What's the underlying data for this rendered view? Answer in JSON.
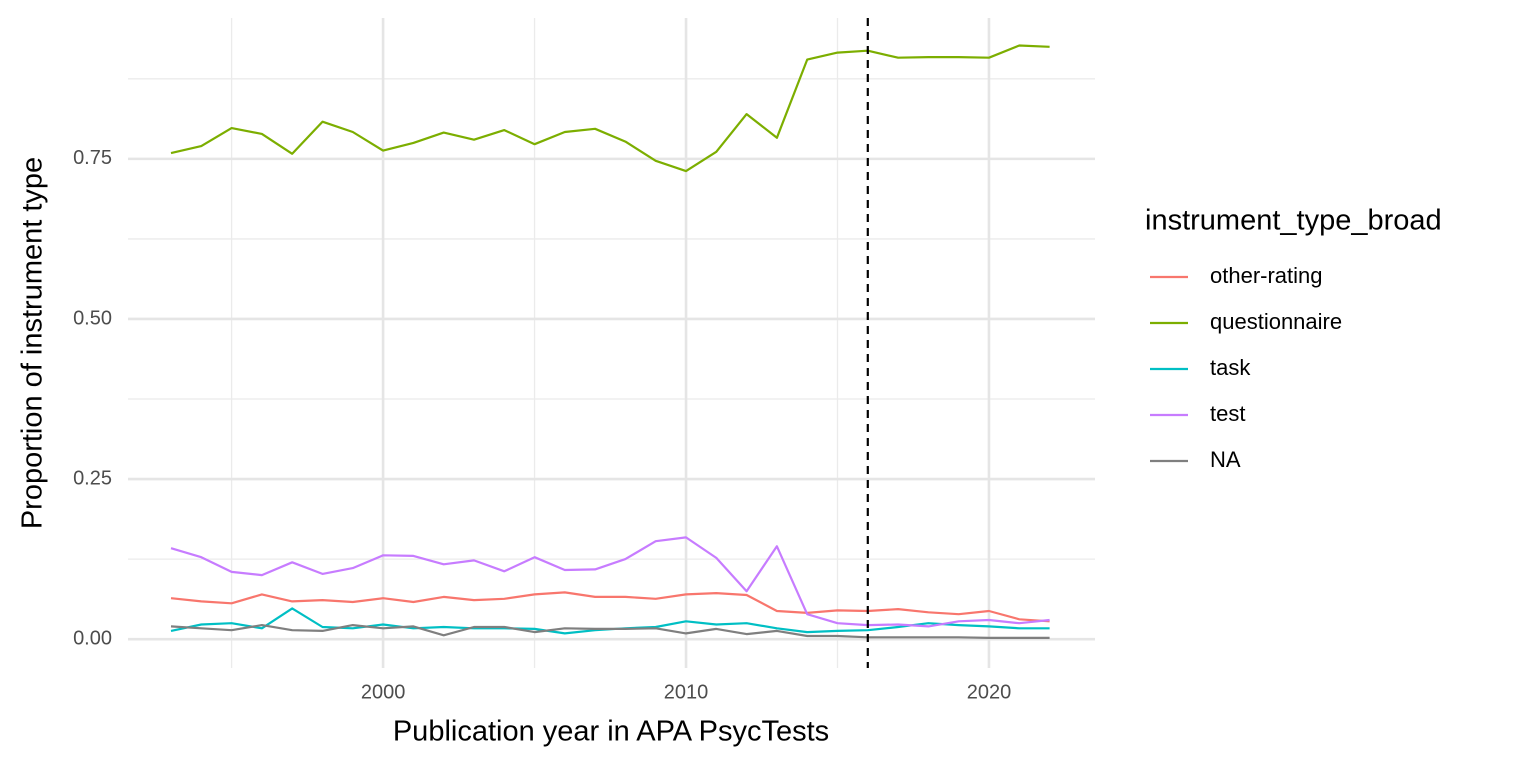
{
  "chart_data": {
    "type": "line",
    "x_label": "Publication year in APA PsycTests",
    "y_label": "Proportion of instrument type",
    "legend_title": "instrument_type_broad",
    "legend_position": "right",
    "grid": true,
    "x": [
      1993,
      1994,
      1995,
      1996,
      1997,
      1998,
      1999,
      2000,
      2001,
      2002,
      2003,
      2004,
      2005,
      2006,
      2007,
      2008,
      2009,
      2010,
      2011,
      2012,
      2013,
      2014,
      2015,
      2016,
      2017,
      2018,
      2019,
      2020,
      2021,
      2022
    ],
    "xlim": [
      1991.58,
      2023.5
    ],
    "xticks": [
      2000,
      2010,
      2020
    ],
    "xminor": [
      1995,
      2005,
      2015
    ],
    "ylim": [
      -0.045,
      0.97
    ],
    "yticks": [
      {
        "value": 0,
        "label": "0.00"
      },
      {
        "value": 0.25,
        "label": "0.25"
      },
      {
        "value": 0.5,
        "label": "0.50"
      },
      {
        "value": 0.75,
        "label": "0.75"
      }
    ],
    "yminor": [
      0.125,
      0.375,
      0.625,
      0.875
    ],
    "vline": 2016,
    "series": [
      {
        "name": "other-rating",
        "color": "#F8766D",
        "values": [
          0.064,
          0.059,
          0.056,
          0.07,
          0.059,
          0.061,
          0.058,
          0.064,
          0.058,
          0.066,
          0.061,
          0.063,
          0.07,
          0.073,
          0.066,
          0.066,
          0.063,
          0.07,
          0.072,
          0.069,
          0.044,
          0.041,
          0.045,
          0.044,
          0.047,
          0.042,
          0.039,
          0.044,
          0.031,
          0.028
        ]
      },
      {
        "name": "questionnaire",
        "color": "#7CAE00",
        "values": [
          0.759,
          0.77,
          0.798,
          0.789,
          0.758,
          0.808,
          0.792,
          0.763,
          0.775,
          0.791,
          0.78,
          0.795,
          0.773,
          0.792,
          0.797,
          0.777,
          0.747,
          0.731,
          0.761,
          0.82,
          0.783,
          0.905,
          0.916,
          0.919,
          0.908,
          0.909,
          0.909,
          0.908,
          0.927,
          0.925
        ]
      },
      {
        "name": "task",
        "color": "#00BFC4",
        "values": [
          0.013,
          0.023,
          0.025,
          0.017,
          0.048,
          0.019,
          0.017,
          0.023,
          0.017,
          0.019,
          0.017,
          0.017,
          0.016,
          0.009,
          0.014,
          0.017,
          0.019,
          0.028,
          0.023,
          0.025,
          0.017,
          0.011,
          0.013,
          0.014,
          0.019,
          0.025,
          0.022,
          0.02,
          0.017,
          0.017
        ]
      },
      {
        "name": "test",
        "color": "#C77CFF",
        "values": [
          0.142,
          0.128,
          0.105,
          0.1,
          0.12,
          0.102,
          0.111,
          0.131,
          0.13,
          0.117,
          0.123,
          0.106,
          0.128,
          0.108,
          0.109,
          0.125,
          0.153,
          0.159,
          0.127,
          0.075,
          0.145,
          0.039,
          0.025,
          0.022,
          0.023,
          0.02,
          0.028,
          0.03,
          0.025,
          0.03
        ]
      },
      {
        "name": "NA",
        "color": "#7F7F7F",
        "values": [
          0.02,
          0.017,
          0.014,
          0.022,
          0.014,
          0.013,
          0.022,
          0.017,
          0.02,
          0.006,
          0.019,
          0.019,
          0.011,
          0.017,
          0.016,
          0.016,
          0.017,
          0.009,
          0.016,
          0.008,
          0.013,
          0.005,
          0.005,
          0.003,
          0.003,
          0.003,
          0.003,
          0.002,
          0.002,
          0.002
        ]
      }
    ]
  }
}
